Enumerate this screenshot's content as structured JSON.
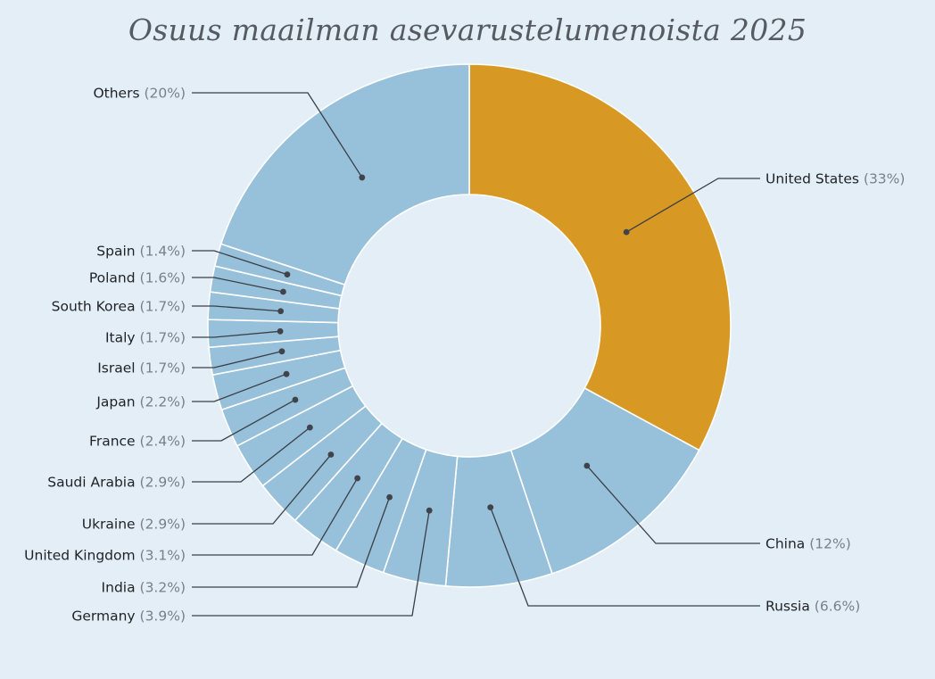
{
  "chart_data": {
    "type": "pie",
    "variant": "donut",
    "title": "Osuus maailman asevarustelumenoista 2025",
    "colors": {
      "highlight": "#d89824",
      "default": "#97c0da",
      "background": "#e3eef6",
      "leader": "#3a3f45"
    },
    "slices": [
      {
        "name": "United States",
        "pct_label": "(33%)",
        "value": 33,
        "highlight": true
      },
      {
        "name": "China",
        "pct_label": "(12%)",
        "value": 12
      },
      {
        "name": "Russia",
        "pct_label": "(6.6%)",
        "value": 6.6
      },
      {
        "name": "Germany",
        "pct_label": "(3.9%)",
        "value": 3.9
      },
      {
        "name": "India",
        "pct_label": "(3.2%)",
        "value": 3.2
      },
      {
        "name": "United Kingdom",
        "pct_label": "(3.1%)",
        "value": 3.1
      },
      {
        "name": "Ukraine",
        "pct_label": "(2.9%)",
        "value": 2.9
      },
      {
        "name": "Saudi Arabia",
        "pct_label": "(2.9%)",
        "value": 2.9
      },
      {
        "name": "France",
        "pct_label": "(2.4%)",
        "value": 2.4
      },
      {
        "name": "Japan",
        "pct_label": "(2.2%)",
        "value": 2.2
      },
      {
        "name": "Israel",
        "pct_label": "(1.7%)",
        "value": 1.7
      },
      {
        "name": "Italy",
        "pct_label": "(1.7%)",
        "value": 1.7
      },
      {
        "name": "South Korea",
        "pct_label": "(1.7%)",
        "value": 1.7
      },
      {
        "name": "Poland",
        "pct_label": "(1.6%)",
        "value": 1.6
      },
      {
        "name": "Spain",
        "pct_label": "(1.4%)",
        "value": 1.4
      },
      {
        "name": "Others",
        "pct_label": "(20%)",
        "value": 20
      }
    ]
  }
}
